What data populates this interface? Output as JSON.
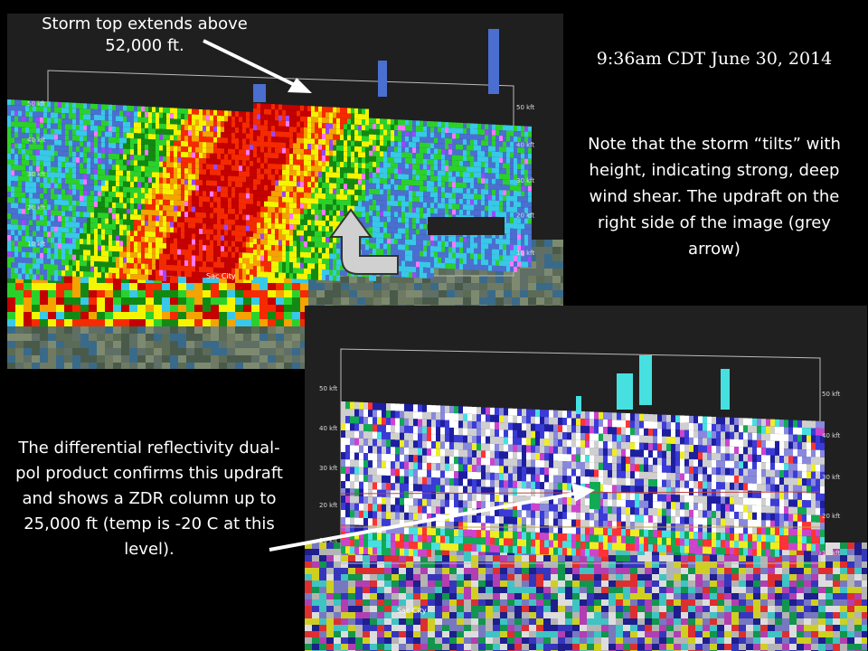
{
  "texts": {
    "storm_top": "Storm top extends above 52,000 ft.",
    "timestamp": "9:36am CDT June 30, 2014",
    "note_tilt": "Note that the storm “tilts” with height, indicating strong, deep wind shear. The updraft on the right side of the image (grey arrow)",
    "zdr_note": "The differential reflectivity dual-pol product confirms this updraft and shows a ZDR column up to 25,000 ft (temp is -20 C at this level)."
  },
  "axis_labels": [
    "50 kft",
    "40 kft",
    "30 kft",
    "20 kft",
    "10 kft"
  ],
  "city_label": "Sac City",
  "colors": {
    "background": "#000000",
    "arrow_white": "#ffffff",
    "arrow_grey": "#cfcfcf",
    "reflectivity_scale": [
      "#4a6fd0",
      "#38c8e8",
      "#2bd12b",
      "#128a12",
      "#f5f500",
      "#f5a300",
      "#f52a00",
      "#c40000",
      "#ff77ff",
      "#9a48ff"
    ],
    "zdr_scale": [
      "#ffffff",
      "#cfcfcf",
      "#8888dd",
      "#3b3bd9",
      "#1e1ea0",
      "#46e0e0",
      "#11aa55",
      "#eeee22",
      "#ff3333",
      "#cc44cc"
    ]
  }
}
